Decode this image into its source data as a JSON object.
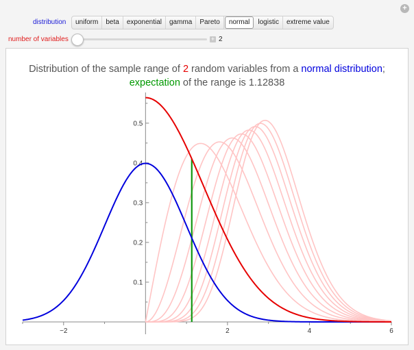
{
  "controls": {
    "distribution_label": "distribution",
    "distribution_options": [
      "uniform",
      "beta",
      "exponential",
      "gamma",
      "Pareto",
      "normal",
      "logistic",
      "extreme value"
    ],
    "selected_distribution": "normal",
    "variables_label": "number of variables",
    "variables_value": "2",
    "slider_fraction": 0.0
  },
  "title": {
    "line1_a": "Distribution of the sample range of ",
    "line1_n": "2",
    "line1_b": " random variables from a ",
    "line1_dist": "normal distribution",
    "line1_c": ";",
    "line2_expectation": "expectation",
    "line2_rest": " of the range is 1.12838"
  },
  "chart_data": {
    "type": "line",
    "xlim": [
      -3,
      6
    ],
    "ylim": [
      0,
      0.56
    ],
    "x_ticks": [
      -2,
      2,
      4,
      6
    ],
    "y_ticks": [
      0.1,
      0.2,
      0.3,
      0.4,
      0.5
    ],
    "expectation": 1.12838,
    "colors": {
      "normal_pdf": "#0000dd",
      "range_pdf": "#e60000",
      "expectation": "#119911",
      "other_ranges": "#ffc4c4"
    },
    "series": [
      {
        "kind": "normal_pdf"
      },
      {
        "kind": "range_pdf",
        "n": 2
      },
      {
        "kind": "other_ranges",
        "n": [
          3,
          4,
          5,
          6,
          7,
          8,
          9,
          10
        ]
      }
    ]
  }
}
